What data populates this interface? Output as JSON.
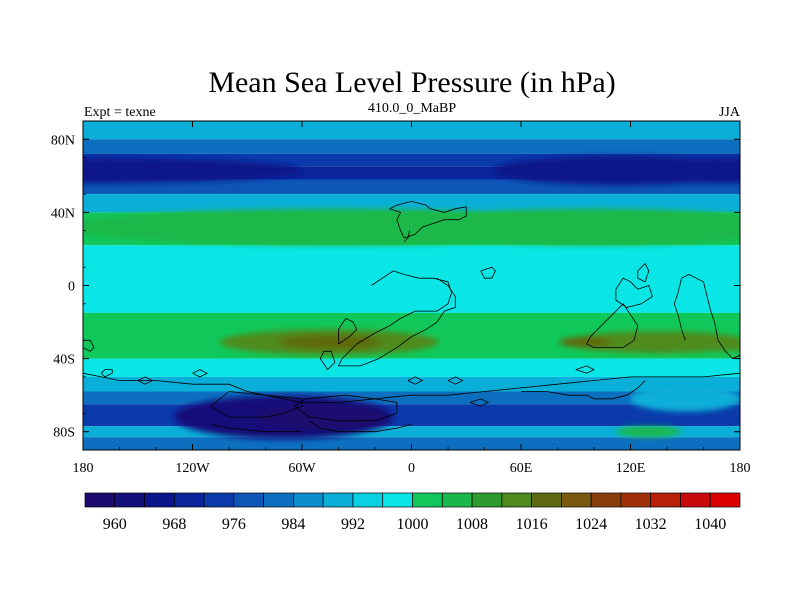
{
  "chart_data": {
    "type": "heatmap",
    "title": "Mean Sea Level Pressure (in hPa)",
    "subtitle_left": "Expt = texne",
    "subtitle_center": "410.0_0_MaBP",
    "subtitle_right": "JJA",
    "units": "hPa",
    "xlim": [
      -180,
      180
    ],
    "ylim": [
      -90,
      90
    ],
    "x_ticks": [
      {
        "value": -180,
        "label": "180"
      },
      {
        "value": -120,
        "label": "120W"
      },
      {
        "value": -60,
        "label": "60W"
      },
      {
        "value": 0,
        "label": "0"
      },
      {
        "value": 60,
        "label": "60E"
      },
      {
        "value": 120,
        "label": "120E"
      },
      {
        "value": 180,
        "label": "180"
      }
    ],
    "y_ticks": [
      {
        "value": 80,
        "label": "80N"
      },
      {
        "value": 40,
        "label": "40N"
      },
      {
        "value": 0,
        "label": "0"
      },
      {
        "value": -40,
        "label": "40S"
      },
      {
        "value": -80,
        "label": "80S"
      }
    ],
    "colorbar": {
      "levels": [
        960,
        964,
        968,
        972,
        976,
        980,
        984,
        988,
        992,
        996,
        1000,
        1004,
        1008,
        1012,
        1016,
        1020,
        1024,
        1028,
        1032,
        1036,
        1040
      ],
      "labeled_levels": [
        {
          "value": 960,
          "label": "960"
        },
        {
          "value": 968,
          "label": "968"
        },
        {
          "value": 976,
          "label": "976"
        },
        {
          "value": 984,
          "label": "984"
        },
        {
          "value": 992,
          "label": "992"
        },
        {
          "value": 1000,
          "label": "1000"
        },
        {
          "value": 1008,
          "label": "1008"
        },
        {
          "value": 1016,
          "label": "1016"
        },
        {
          "value": 1024,
          "label": "1024"
        },
        {
          "value": 1032,
          "label": "1032"
        },
        {
          "value": 1040,
          "label": "1040"
        }
      ],
      "colors": [
        "#1c0a6e",
        "#14107a",
        "#0c168a",
        "#0a249a",
        "#0b3aab",
        "#0d56b6",
        "#0d6fbf",
        "#0b8fcc",
        "#0aafd8",
        "#0ad0e4",
        "#0ae6e6",
        "#10c85a",
        "#1ab84a",
        "#2f9a2e",
        "#4f8a1e",
        "#5f6a10",
        "#7a5a0e",
        "#8a3e0c",
        "#a0300a",
        "#b82008",
        "#c80a0a",
        "#dc0000"
      ]
    },
    "pressure_bands": [
      {
        "lat_max": 90,
        "lat_min": 80,
        "level_index": 8
      },
      {
        "lat_max": 80,
        "lat_min": 72,
        "level_index": 6
      },
      {
        "lat_max": 72,
        "lat_min": 65,
        "level_index": 4
      },
      {
        "lat_max": 65,
        "lat_min": 58,
        "level_index": 3
      },
      {
        "lat_max": 58,
        "lat_min": 50,
        "level_index": 5
      },
      {
        "lat_max": 50,
        "lat_min": 40,
        "level_index": 8
      },
      {
        "lat_max": 40,
        "lat_min": 22,
        "level_index": 11
      },
      {
        "lat_max": 22,
        "lat_min": -15,
        "level_index": 10
      },
      {
        "lat_max": -15,
        "lat_min": -40,
        "level_index": 11
      },
      {
        "lat_max": -40,
        "lat_min": -50,
        "level_index": 10
      },
      {
        "lat_max": -50,
        "lat_min": -58,
        "level_index": 8
      },
      {
        "lat_max": -58,
        "lat_min": -65,
        "level_index": 6
      },
      {
        "lat_max": -65,
        "lat_min": -77,
        "level_index": 4
      },
      {
        "lat_max": -77,
        "lat_min": -83,
        "level_index": 8
      },
      {
        "lat_max": -83,
        "lat_min": -90,
        "level_index": 6
      }
    ],
    "pressure_features": [
      {
        "lon": -180,
        "lat": 63,
        "rx": 120,
        "ry": 7,
        "level_index": 2
      },
      {
        "lon": 180,
        "lat": 63,
        "rx": 120,
        "ry": 7,
        "level_index": 2
      },
      {
        "lon": 115,
        "lat": 63,
        "rx": 70,
        "ry": 8,
        "level_index": 2
      },
      {
        "lon": -40,
        "lat": 32,
        "rx": 150,
        "ry": 10,
        "level_index": 12
      },
      {
        "lon": 100,
        "lat": 32,
        "rx": 110,
        "ry": 10,
        "level_index": 12
      },
      {
        "lon": -45,
        "lat": -31,
        "rx": 60,
        "ry": 7,
        "level_index": 14
      },
      {
        "lon": -45,
        "lat": -31,
        "rx": 28,
        "ry": 4,
        "level_index": 15
      },
      {
        "lon": 135,
        "lat": -31,
        "rx": 50,
        "ry": 6,
        "level_index": 14
      },
      {
        "lon": 95,
        "lat": -31,
        "rx": 14,
        "ry": 3,
        "level_index": 15
      },
      {
        "lon": 170,
        "lat": -32,
        "rx": 18,
        "ry": 4,
        "level_index": 14
      },
      {
        "lon": -70,
        "lat": -72,
        "rx": 60,
        "ry": 12,
        "level_index": 1
      },
      {
        "lon": -50,
        "lat": -72,
        "rx": 35,
        "ry": 7,
        "level_index": 0
      },
      {
        "lon": 130,
        "lat": -80,
        "rx": 18,
        "ry": 3,
        "level_index": 12
      },
      {
        "lon": 150,
        "lat": -62,
        "rx": 30,
        "ry": 7,
        "level_index": 8
      }
    ],
    "coastlines": [
      [
        [
          -180,
          -30
        ],
        [
          -176,
          -30
        ],
        [
          -174,
          -34
        ],
        [
          -176,
          -36
        ],
        [
          -180,
          -34
        ]
      ],
      [
        [
          -12,
          42
        ],
        [
          -8,
          44
        ],
        [
          0,
          46
        ],
        [
          8,
          44
        ],
        [
          10,
          42
        ],
        [
          18,
          40
        ],
        [
          24,
          42
        ],
        [
          30,
          43
        ],
        [
          30,
          38
        ],
        [
          26,
          36
        ],
        [
          18,
          36
        ],
        [
          12,
          34
        ],
        [
          6,
          32
        ],
        [
          2,
          28
        ],
        [
          -4,
          26
        ],
        [
          -6,
          30
        ],
        [
          -8,
          36
        ],
        [
          -6,
          40
        ],
        [
          -12,
          42
        ]
      ],
      [
        [
          -4,
          24
        ],
        [
          -2,
          26
        ],
        [
          -1,
          30
        ]
      ],
      [
        [
          38,
          8
        ],
        [
          44,
          10
        ],
        [
          46,
          8
        ],
        [
          44,
          4
        ],
        [
          40,
          4
        ],
        [
          38,
          8
        ]
      ],
      [
        [
          -22,
          0
        ],
        [
          -16,
          4
        ],
        [
          -10,
          8
        ],
        [
          -4,
          6
        ],
        [
          4,
          4
        ],
        [
          12,
          4
        ],
        [
          20,
          2
        ],
        [
          22,
          -4
        ],
        [
          20,
          -10
        ],
        [
          14,
          -14
        ],
        [
          2,
          -14
        ],
        [
          -6,
          -18
        ],
        [
          -12,
          -22
        ],
        [
          -20,
          -26
        ],
        [
          -30,
          -32
        ],
        [
          -38,
          -40
        ],
        [
          -40,
          -44
        ],
        [
          -28,
          -44
        ],
        [
          -18,
          -40
        ],
        [
          -8,
          -34
        ],
        [
          0,
          -28
        ],
        [
          8,
          -24
        ],
        [
          14,
          -20
        ],
        [
          18,
          -14
        ],
        [
          24,
          -12
        ],
        [
          24,
          -6
        ],
        [
          20,
          0
        ],
        [
          14,
          4
        ]
      ],
      [
        [
          -40,
          -32
        ],
        [
          -34,
          -28
        ],
        [
          -30,
          -24
        ],
        [
          -32,
          -20
        ],
        [
          -36,
          -18
        ],
        [
          -40,
          -24
        ],
        [
          -40,
          -32
        ]
      ],
      [
        [
          -50,
          -40
        ],
        [
          -48,
          -36
        ],
        [
          -44,
          -36
        ],
        [
          -42,
          -42
        ],
        [
          -46,
          -46
        ],
        [
          -50,
          -40
        ]
      ],
      [
        [
          112,
          -2
        ],
        [
          116,
          4
        ],
        [
          120,
          2
        ],
        [
          124,
          -2
        ],
        [
          130,
          0
        ],
        [
          132,
          -6
        ],
        [
          126,
          -10
        ],
        [
          118,
          -12
        ],
        [
          112,
          -8
        ],
        [
          112,
          -2
        ]
      ],
      [
        [
          98,
          -28
        ],
        [
          104,
          -22
        ],
        [
          110,
          -16
        ],
        [
          116,
          -10
        ],
        [
          120,
          -16
        ],
        [
          124,
          -22
        ],
        [
          122,
          -30
        ],
        [
          116,
          -34
        ],
        [
          108,
          -34
        ],
        [
          100,
          -34
        ],
        [
          96,
          -32
        ],
        [
          98,
          -28
        ]
      ],
      [
        [
          124,
          8
        ],
        [
          128,
          12
        ],
        [
          130,
          8
        ],
        [
          128,
          2
        ],
        [
          124,
          4
        ],
        [
          124,
          8
        ]
      ],
      [
        [
          148,
          4
        ],
        [
          152,
          6
        ],
        [
          156,
          4
        ],
        [
          160,
          2
        ],
        [
          162,
          -6
        ],
        [
          164,
          -14
        ],
        [
          166,
          -20
        ],
        [
          168,
          -30
        ],
        [
          172,
          -36
        ],
        [
          176,
          -40
        ],
        [
          180,
          -38
        ]
      ],
      [
        [
          148,
          4
        ],
        [
          146,
          -4
        ],
        [
          144,
          -10
        ],
        [
          146,
          -16
        ],
        [
          148,
          -24
        ],
        [
          150,
          -30
        ]
      ],
      [
        [
          -180,
          -48
        ],
        [
          -170,
          -50
        ],
        [
          -160,
          -52
        ],
        [
          -140,
          -52
        ],
        [
          -120,
          -54
        ],
        [
          -100,
          -54
        ],
        [
          -90,
          -58
        ],
        [
          -80,
          -60
        ],
        [
          -70,
          -62
        ],
        [
          -60,
          -64
        ],
        [
          -40,
          -64
        ],
        [
          -20,
          -62
        ],
        [
          0,
          -60
        ],
        [
          20,
          -60
        ],
        [
          40,
          -58
        ],
        [
          60,
          -56
        ],
        [
          80,
          -54
        ],
        [
          100,
          -52
        ],
        [
          120,
          -50
        ],
        [
          140,
          -50
        ],
        [
          160,
          -50
        ],
        [
          180,
          -48
        ]
      ],
      [
        [
          -100,
          -58
        ],
        [
          -80,
          -60
        ],
        [
          -60,
          -62
        ],
        [
          -60,
          -66
        ],
        [
          -70,
          -70
        ],
        [
          -80,
          -72
        ],
        [
          -100,
          -72
        ],
        [
          -110,
          -66
        ],
        [
          -100,
          -58
        ]
      ],
      [
        [
          -36,
          -60
        ],
        [
          -20,
          -62
        ],
        [
          -8,
          -64
        ],
        [
          -8,
          -70
        ],
        [
          -20,
          -74
        ],
        [
          -40,
          -74
        ],
        [
          -56,
          -72
        ],
        [
          -64,
          -66
        ],
        [
          -58,
          -62
        ],
        [
          -36,
          -60
        ]
      ],
      [
        [
          -56,
          -74
        ],
        [
          -50,
          -78
        ],
        [
          -40,
          -80
        ],
        [
          -20,
          -80
        ],
        [
          -8,
          -78
        ],
        [
          0,
          -76
        ]
      ],
      [
        [
          -110,
          -76
        ],
        [
          -100,
          -78
        ],
        [
          -80,
          -80
        ],
        [
          -60,
          -80
        ]
      ],
      [
        [
          60,
          -58
        ],
        [
          74,
          -58
        ],
        [
          86,
          -60
        ],
        [
          96,
          -60
        ],
        [
          100,
          -62
        ],
        [
          110,
          -62
        ],
        [
          118,
          -60
        ],
        [
          124,
          -56
        ],
        [
          128,
          -52
        ]
      ],
      [
        [
          -170,
          -48
        ],
        [
          -168,
          -46
        ],
        [
          -164,
          -46
        ],
        [
          -164,
          -48
        ],
        [
          -168,
          -50
        ],
        [
          -170,
          -48
        ]
      ],
      [
        [
          -150,
          -52
        ],
        [
          -146,
          -50
        ],
        [
          -142,
          -52
        ],
        [
          -146,
          -54
        ],
        [
          -150,
          -52
        ]
      ],
      [
        [
          -120,
          -48
        ],
        [
          -116,
          -46
        ],
        [
          -112,
          -48
        ],
        [
          -116,
          -50
        ],
        [
          -120,
          -48
        ]
      ],
      [
        [
          -2,
          -52
        ],
        [
          2,
          -50
        ],
        [
          6,
          -52
        ],
        [
          2,
          -54
        ],
        [
          -2,
          -52
        ]
      ],
      [
        [
          20,
          -52
        ],
        [
          24,
          -50
        ],
        [
          28,
          -52
        ],
        [
          24,
          -54
        ],
        [
          20,
          -52
        ]
      ],
      [
        [
          90,
          -46
        ],
        [
          96,
          -44
        ],
        [
          100,
          -46
        ],
        [
          96,
          -48
        ],
        [
          90,
          -46
        ]
      ],
      [
        [
          176,
          -40
        ],
        [
          180,
          -38
        ]
      ],
      [
        [
          32,
          -64
        ],
        [
          38,
          -62
        ],
        [
          42,
          -64
        ],
        [
          38,
          -66
        ],
        [
          32,
          -64
        ]
      ]
    ]
  }
}
